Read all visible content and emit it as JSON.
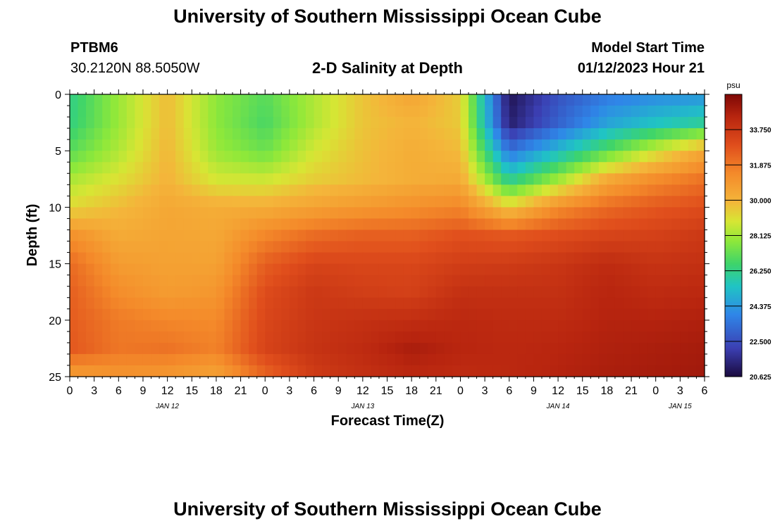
{
  "header": {
    "title": "University of Southern Mississippi Ocean Cube",
    "station_id": "PTBM6",
    "coordinates": "30.2120N  88.5050W",
    "subtitle": "2-D Salinity at Depth",
    "model_start_label": "Model Start Time",
    "model_start_value": "01/12/2023 Hour 21"
  },
  "footer": {
    "title": "University of Southern Mississippi Ocean Cube"
  },
  "chart_data": {
    "type": "heatmap",
    "title": "2-D Salinity at Depth",
    "xlabel": "Forecast Time(Z)",
    "ylabel": "Depth (ft)",
    "x_tick_labels": [
      "0",
      "3",
      "6",
      "9",
      "12",
      "15",
      "18",
      "21",
      "0",
      "3",
      "6",
      "9",
      "12",
      "15",
      "18",
      "21",
      "0",
      "3",
      "6",
      "9",
      "12",
      "15",
      "18",
      "21",
      "0",
      "3",
      "6"
    ],
    "x_range_hours": [
      0,
      78
    ],
    "x_tick_step_hours": 3,
    "date_labels": [
      {
        "label": "JAN 12",
        "hour": 12
      },
      {
        "label": "JAN 13",
        "hour": 36
      },
      {
        "label": "JAN 14",
        "hour": 60
      },
      {
        "label": "JAN 15",
        "hour": 75
      }
    ],
    "y_ticks": [
      0,
      5,
      10,
      15,
      20,
      25
    ],
    "y_range_ft": [
      0,
      25
    ],
    "colorbar": {
      "unit": "psu",
      "min": 20.625,
      "max": 35.625,
      "tick_labels": [
        "33.750",
        "31.875",
        "30.000",
        "28.125",
        "26.250",
        "24.375",
        "22.500",
        "20.625"
      ],
      "tick_values": [
        33.75,
        31.875,
        30.0,
        28.125,
        26.25,
        24.375,
        22.5,
        20.625
      ]
    },
    "field_description": {
      "depths_ft": [
        0,
        2.5,
        5,
        7.5,
        10,
        12.5,
        15,
        17.5,
        20,
        22.5,
        25
      ],
      "times_hr": [
        0,
        6,
        12,
        18,
        24,
        30,
        36,
        42,
        48,
        54,
        60,
        66,
        72,
        78
      ],
      "salinity_psu": [
        [
          26.2,
          28.0,
          29.8,
          27.8,
          27.0,
          28.3,
          29.6,
          30.5,
          29.4,
          20.9,
          22.6,
          23.6,
          24.0,
          24.2
        ],
        [
          26.3,
          28.0,
          29.8,
          27.8,
          26.8,
          28.3,
          29.6,
          30.0,
          29.5,
          21.2,
          23.0,
          24.6,
          25.4,
          26.0
        ],
        [
          27.0,
          28.3,
          29.9,
          28.0,
          27.3,
          28.8,
          29.7,
          30.2,
          29.8,
          23.4,
          25.2,
          27.0,
          28.8,
          30.4
        ],
        [
          28.2,
          29.0,
          30.0,
          28.8,
          28.7,
          29.4,
          29.8,
          30.2,
          30.3,
          26.0,
          28.0,
          30.3,
          31.3,
          32.0
        ],
        [
          29.2,
          29.8,
          30.4,
          30.2,
          30.2,
          30.6,
          30.9,
          31.2,
          31.5,
          29.5,
          31.3,
          32.2,
          32.7,
          33.0
        ],
        [
          31.2,
          30.3,
          30.5,
          30.4,
          31.5,
          32.2,
          32.5,
          32.5,
          32.9,
          32.7,
          33.0,
          33.3,
          33.4,
          33.7
        ],
        [
          32.2,
          30.8,
          30.6,
          30.6,
          32.5,
          33.3,
          33.2,
          33.2,
          33.5,
          33.6,
          33.8,
          34.2,
          33.9,
          34.0
        ],
        [
          32.5,
          31.3,
          30.8,
          31.0,
          33.0,
          33.7,
          33.5,
          33.4,
          34.0,
          34.0,
          34.0,
          34.4,
          34.2,
          34.3
        ],
        [
          32.6,
          31.8,
          31.5,
          31.4,
          33.2,
          33.8,
          34.0,
          34.1,
          34.3,
          34.2,
          34.2,
          34.5,
          34.5,
          34.6
        ],
        [
          32.7,
          31.9,
          32.0,
          31.6,
          33.3,
          33.9,
          34.2,
          34.7,
          34.4,
          34.3,
          34.4,
          34.6,
          34.7,
          34.8
        ],
        [
          30.6,
          31.0,
          30.9,
          30.5,
          32.3,
          33.6,
          34.0,
          34.3,
          34.2,
          34.3,
          34.5,
          34.7,
          34.8,
          34.9
        ]
      ]
    }
  }
}
